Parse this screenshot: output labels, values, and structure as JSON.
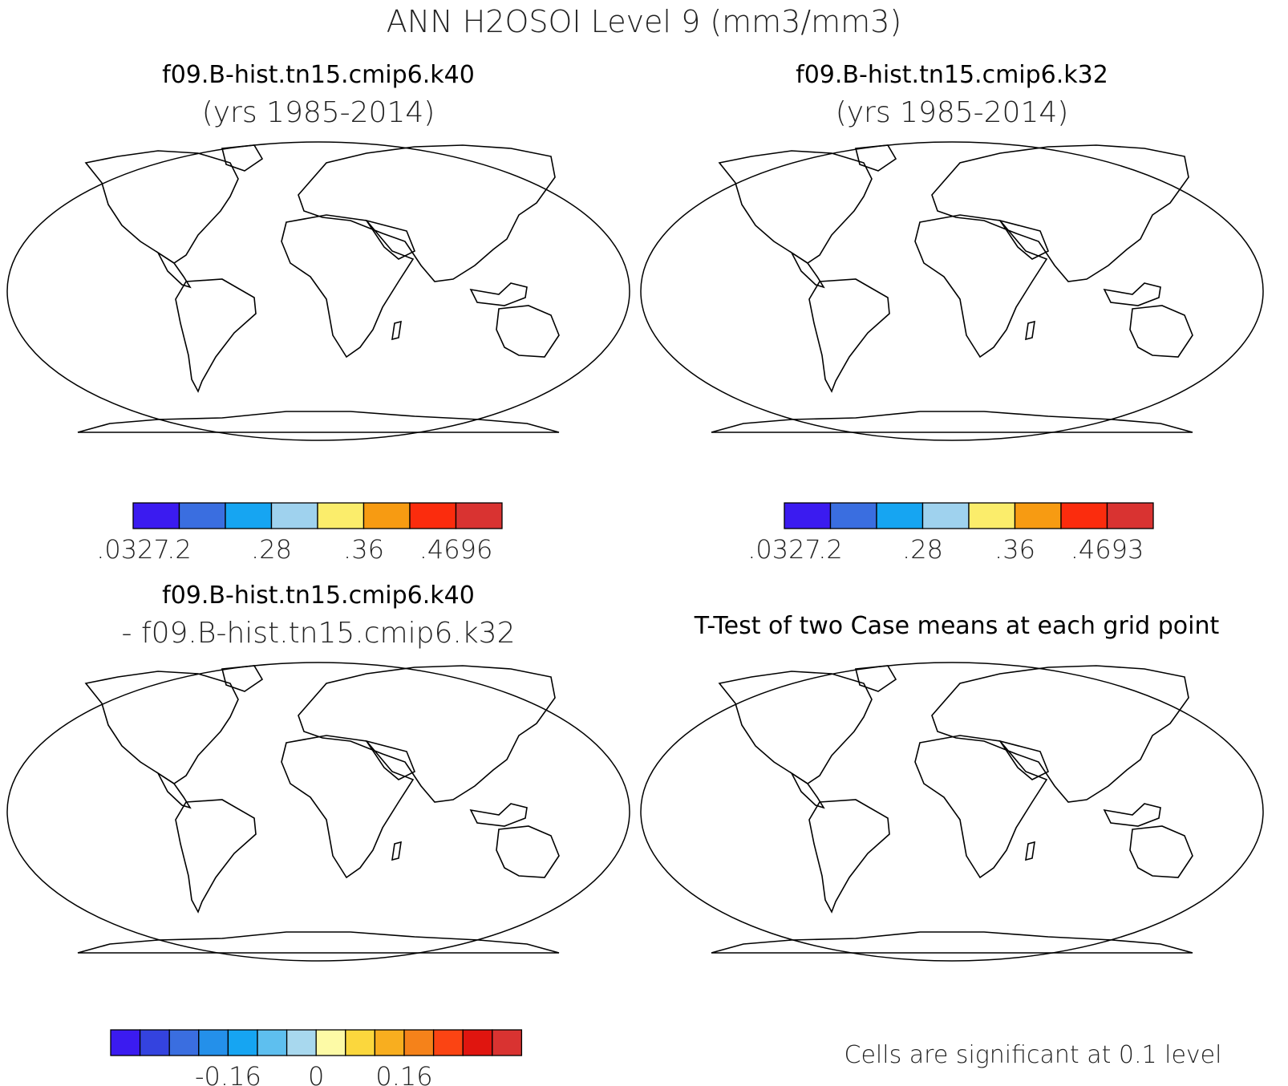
{
  "title": "ANN H2OSOI Level 9 (mm3/mm3)",
  "colors": {
    "abs_scale": [
      "#3b1bf0",
      "#3a6ee0",
      "#16a5f2",
      "#9fd2ee",
      "#fbed6b",
      "#f79b12",
      "#fb2c0d",
      "#d93331"
    ],
    "diff_scale": [
      "#3b1bf0",
      "#3443df",
      "#3a6ee0",
      "#2490ea",
      "#16a5f2",
      "#5ebfef",
      "#a8d8ee",
      "#fdfaa6",
      "#fbd73d",
      "#f8ae1f",
      "#f5821a",
      "#fb4413",
      "#e0150f",
      "#d93331"
    ],
    "signif": "#ee0000",
    "continent_line": "#000000"
  },
  "panels": [
    {
      "id": "case1",
      "title_line1": "f09.B-hist.tn15.cmip6.k40",
      "title_line2": "(yrs 1985-2014)",
      "colorbar_labels": [
        ".0327",
        ".2",
        ".28",
        ".36",
        ".4696"
      ],
      "colorbar_label_bins": [
        0,
        1,
        3,
        5,
        7
      ]
    },
    {
      "id": "case2",
      "title_line1": "f09.B-hist.tn15.cmip6.k32",
      "title_line2": "(yrs 1985-2014)",
      "colorbar_labels": [
        ".0327",
        ".2",
        ".28",
        ".36",
        ".4693"
      ],
      "colorbar_label_bins": [
        0,
        1,
        3,
        5,
        7
      ]
    },
    {
      "id": "diff",
      "title_line1": "f09.B-hist.tn15.cmip6.k40",
      "title_line2": "- f09.B-hist.tn15.cmip6.k32",
      "colorbar_labels": [
        "-0.16",
        "0",
        "0.16"
      ],
      "colorbar_label_bins": [
        4,
        7,
        10
      ]
    },
    {
      "id": "ttest",
      "title_line1": "T-Test of two Case means at each grid point",
      "footer": "Cells are significant at 0.1 level"
    }
  ]
}
